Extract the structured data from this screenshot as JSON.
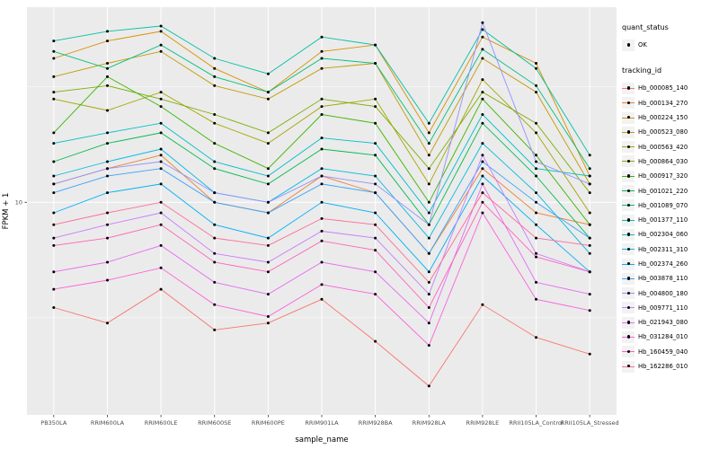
{
  "chart_data": {
    "type": "line",
    "title": "",
    "xlabel": "sample_name",
    "ylabel": "FPKM + 1",
    "y_scale": "log10",
    "ylim": [
      1.2,
      70
    ],
    "y_major_ticks": [
      10
    ],
    "y_minor_ticks": [
      3.162,
      31.62
    ],
    "y_tick_labels": [
      "10"
    ],
    "panel_bg": "#EBEBEB",
    "grid_color": "#FFFFFF",
    "marker_color": "#000000",
    "categories": [
      "PB350LA",
      "RRIM600LA",
      "RRIM600LE",
      "RRIM600SE",
      "RRIM600PE",
      "RRIM901LA",
      "RRIM928BA",
      "RRIM928LA",
      "RRIM928LE",
      "RRII105LA_Control",
      "RRII105LA_Stressed"
    ],
    "legend": {
      "position": "right",
      "quant_status": {
        "title": "quant_status",
        "items": [
          {
            "label": "OK",
            "marker": "point",
            "color": "#000000"
          }
        ]
      },
      "tracking_id": {
        "title": "tracking_id"
      }
    },
    "series": [
      {
        "name": "Hb_000085_140",
        "color": "#F8766D",
        "values": [
          3.5,
          3.0,
          4.2,
          2.8,
          3.0,
          3.8,
          2.5,
          1.6,
          3.6,
          2.6,
          2.2
        ]
      },
      {
        "name": "Hb_000134_270",
        "color": "#EA8331",
        "values": [
          12,
          14,
          16,
          10,
          9,
          13,
          11,
          6,
          14,
          9,
          8
        ]
      },
      {
        "name": "Hb_000224_150",
        "color": "#D89000",
        "values": [
          42,
          50,
          55,
          38,
          30,
          45,
          48,
          20,
          52,
          40,
          13
        ]
      },
      {
        "name": "Hb_000523_080",
        "color": "#C09B00",
        "values": [
          35,
          40,
          45,
          32,
          28,
          38,
          40,
          16,
          42,
          30,
          12
        ]
      },
      {
        "name": "Hb_000563_420",
        "color": "#A3A500",
        "values": [
          28,
          25,
          30,
          22,
          18,
          26,
          28,
          12,
          34,
          20,
          9
        ]
      },
      {
        "name": "Hb_000864_030",
        "color": "#7CAE00",
        "values": [
          30,
          32,
          28,
          24,
          20,
          28,
          26,
          14,
          30,
          22,
          11
        ]
      },
      {
        "name": "Hb_000917_320",
        "color": "#39B600",
        "values": [
          20,
          35,
          26,
          18,
          14,
          24,
          22,
          10,
          28,
          16,
          8
        ]
      },
      {
        "name": "Hb_001021_220",
        "color": "#00BB4E",
        "values": [
          15,
          18,
          20,
          14,
          12,
          17,
          16,
          8,
          22,
          13,
          7
        ]
      },
      {
        "name": "Hb_001089_070",
        "color": "#00BF7D",
        "values": [
          45,
          38,
          48,
          35,
          30,
          42,
          40,
          18,
          46,
          32,
          14
        ]
      },
      {
        "name": "Hb_001377_110",
        "color": "#00C1A3",
        "values": [
          50,
          55,
          58,
          42,
          36,
          52,
          48,
          22,
          56,
          38,
          16
        ]
      },
      {
        "name": "Hb_002304_060",
        "color": "#00BFC4",
        "values": [
          18,
          20,
          22,
          15,
          13,
          19,
          18,
          9,
          24,
          14,
          13
        ]
      },
      {
        "name": "Hb_002311_310",
        "color": "#00BAE0",
        "values": [
          13,
          15,
          17,
          11,
          10,
          14,
          13,
          7,
          18,
          11,
          6
        ]
      },
      {
        "name": "Hb_002374_260",
        "color": "#00B0F6",
        "values": [
          9,
          11,
          12,
          8,
          7,
          10,
          9,
          5,
          13,
          8,
          5
        ]
      },
      {
        "name": "Hb_003878_110",
        "color": "#35A2FF",
        "values": [
          11,
          13,
          14,
          10,
          9,
          12,
          11,
          6,
          15,
          10,
          7
        ]
      },
      {
        "name": "Hb_004800_180",
        "color": "#9590FF",
        "values": [
          12,
          14,
          15,
          11,
          10,
          13,
          12,
          8,
          60,
          15,
          12
        ]
      },
      {
        "name": "Hb_009771_110",
        "color": "#C77CFF",
        "values": [
          7,
          8,
          9,
          6,
          5.5,
          7.5,
          7,
          4,
          16,
          6,
          5
        ]
      },
      {
        "name": "Hb_021943_080",
        "color": "#E76BF3",
        "values": [
          5,
          5.5,
          6.5,
          4.5,
          4,
          5.5,
          5,
          3,
          12,
          4.5,
          4
        ]
      },
      {
        "name": "Hb_031284_010",
        "color": "#FA62DB",
        "values": [
          4.2,
          4.6,
          5.2,
          3.6,
          3.2,
          4.4,
          4,
          2.4,
          9,
          3.8,
          3.4
        ]
      },
      {
        "name": "Hb_160459_040",
        "color": "#FF62BC",
        "values": [
          6.5,
          7,
          8,
          5.5,
          5,
          6.8,
          6.2,
          3.5,
          10,
          5.8,
          5
        ]
      },
      {
        "name": "Hb_162286_010",
        "color": "#FF6A98",
        "values": [
          8,
          9,
          10,
          7,
          6.5,
          8.5,
          8,
          4.5,
          11,
          7,
          6.5
        ]
      }
    ]
  }
}
